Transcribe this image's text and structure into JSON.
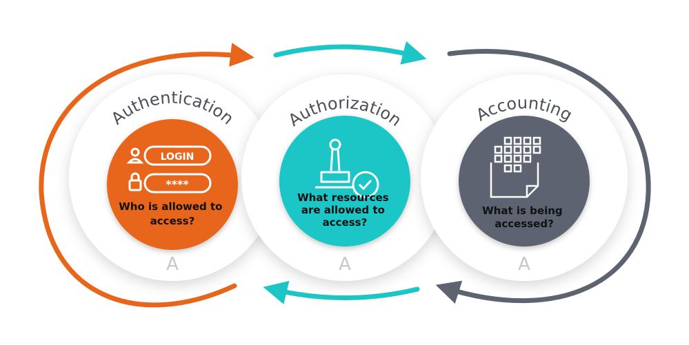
{
  "stages": [
    {
      "title": "Authentication",
      "question_lines": [
        "Who is allowed to",
        "access?"
      ],
      "letter": "A",
      "login_text": "LOGIN",
      "password_text": "****",
      "color": "#e8661c"
    },
    {
      "title": "Authorization",
      "question_lines": [
        "What resources",
        "are allowed to",
        "access?"
      ],
      "letter": "A",
      "color": "#1cc6c6"
    },
    {
      "title": "Accounting",
      "question_lines": [
        "What is being",
        "accessed?"
      ],
      "letter": "A",
      "color": "#5d6470"
    }
  ],
  "colors": {
    "orange": "#e8661c",
    "teal": "#1cc6c6",
    "gray": "#5d6470",
    "title": "#4a4f58",
    "letter": "#c4c7cc"
  }
}
